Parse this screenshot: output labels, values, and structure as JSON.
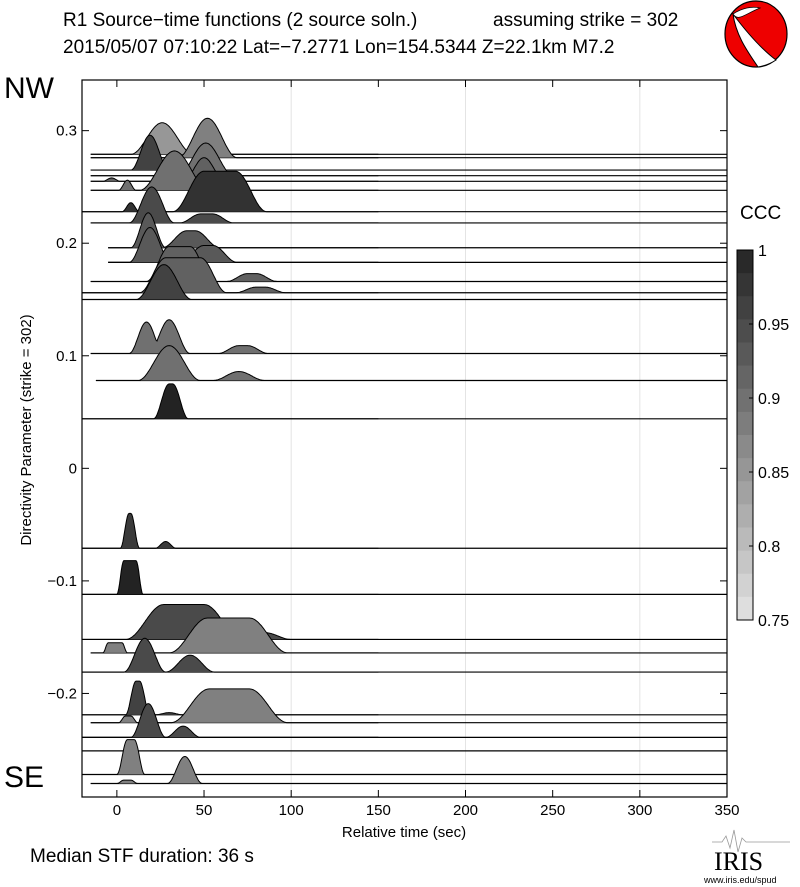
{
  "chart_data": {
    "type": "area",
    "title_line1": "R1 Source−time functions (2 source soln.)",
    "title_strike": "assuming strike = 302",
    "title_line2": "2015/05/07 07:10:22  Lat=−7.2771 Lon=154.5344  Z=22.1km  M7.2",
    "xlabel": "Relative time (sec)",
    "ylabel": "Directivity Parameter (strike = 302)",
    "xlim": [
      -20,
      350
    ],
    "ylim": [
      -0.292,
      0.345
    ],
    "xticks": [
      0,
      50,
      100,
      150,
      200,
      250,
      300,
      350
    ],
    "xgrid": [
      100,
      200,
      300
    ],
    "yticks": [
      0.3,
      0.2,
      0.1,
      0,
      -0.1,
      -0.2
    ],
    "ytick_labels": [
      "0.3",
      "0.2",
      "0.1",
      "0",
      "−0.1",
      "−0.2"
    ],
    "label_top": "NW",
    "label_bottom": "SE",
    "colorbar": {
      "title": "CCC",
      "range": [
        0.75,
        1
      ],
      "ticks": [
        "1",
        "0.95",
        "0.9",
        "0.85",
        "0.8",
        "0.75"
      ],
      "tick_values": [
        1,
        0.95,
        0.9,
        0.85,
        0.8,
        0.75
      ],
      "steps": 16
    },
    "footer": "Median STF duration: 36 s",
    "logo_text": "IRIS",
    "logo_url_text": "www.iris.edu/spud",
    "mechanism_color": "#ee0000",
    "traces": [
      {
        "d": 0.279,
        "start": -15,
        "ccc": 0.85,
        "pulses": [
          [
            26,
            26,
            18,
            0.028
          ]
        ]
      },
      {
        "d": 0.276,
        "start": -15,
        "ccc": 0.88,
        "pulses": [
          [
            52,
            52,
            17,
            0.035
          ]
        ]
      },
      {
        "d": 0.265,
        "start": -15,
        "ccc": 0.96,
        "pulses": [
          [
            19,
            19,
            11,
            0.031
          ],
          [
            40,
            40,
            10,
            0.005
          ]
        ]
      },
      {
        "d": 0.26,
        "start": -15,
        "ccc": 0.9,
        "pulses": [
          [
            51,
            51,
            16,
            0.029
          ]
        ]
      },
      {
        "d": 0.255,
        "start": -15,
        "ccc": 0.92,
        "pulses": [
          [
            50,
            50,
            12,
            0.021
          ],
          [
            -3,
            -3,
            5,
            0.003
          ]
        ]
      },
      {
        "d": 0.247,
        "start": -15,
        "ccc": 0.9,
        "pulses": [
          [
            33,
            33,
            20,
            0.035
          ],
          [
            6,
            6,
            5,
            0.009
          ]
        ]
      },
      {
        "d": 0.228,
        "start": -20,
        "ccc": 0.98,
        "pulses": [
          [
            50,
            68,
            18,
            0.036
          ],
          [
            8,
            8,
            5,
            0.008
          ]
        ]
      },
      {
        "d": 0.218,
        "start": -15,
        "ccc": 0.95,
        "pulses": [
          [
            20,
            20,
            13,
            0.032
          ],
          [
            48,
            55,
            12,
            0.008
          ]
        ]
      },
      {
        "d": 0.196,
        "start": -5,
        "ccc": 0.93,
        "pulses": [
          [
            18,
            18,
            10,
            0.031
          ],
          [
            40,
            45,
            14,
            0.015
          ]
        ]
      },
      {
        "d": 0.183,
        "start": -5,
        "ccc": 0.93,
        "pulses": [
          [
            19,
            19,
            12,
            0.031
          ],
          [
            50,
            55,
            14,
            0.015
          ]
        ]
      },
      {
        "d": 0.166,
        "start": -15,
        "ccc": 0.92,
        "pulses": [
          [
            30,
            42,
            13,
            0.031
          ],
          [
            75,
            80,
            12,
            0.007
          ]
        ]
      },
      {
        "d": 0.156,
        "start": -20,
        "ccc": 0.92,
        "pulses": [
          [
            28,
            48,
            15,
            0.031
          ],
          [
            80,
            85,
            12,
            0.005
          ]
        ]
      },
      {
        "d": 0.15,
        "start": -20,
        "ccc": 0.96,
        "pulses": [
          [
            27,
            27,
            16,
            0.031
          ]
        ]
      },
      {
        "d": 0.102,
        "start": -15,
        "ccc": 0.9,
        "pulses": [
          [
            17,
            17,
            10,
            0.028
          ],
          [
            30,
            30,
            12,
            0.03
          ],
          [
            70,
            75,
            12,
            0.007
          ]
        ]
      },
      {
        "d": 0.078,
        "start": -12,
        "ccc": 0.9,
        "pulses": [
          [
            30,
            30,
            18,
            0.031
          ],
          [
            70,
            70,
            15,
            0.008
          ]
        ]
      },
      {
        "d": 0.044,
        "start": -20,
        "ccc": 1.0,
        "pulses": [
          [
            30,
            32,
            9,
            0.031
          ]
        ]
      },
      {
        "d": -0.071,
        "start": -20,
        "ccc": 0.97,
        "pulses": [
          [
            7,
            8,
            5,
            0.031
          ],
          [
            28,
            28,
            6,
            0.006
          ]
        ]
      },
      {
        "d": -0.112,
        "start": -20,
        "ccc": 1.0,
        "pulses": [
          [
            4,
            11,
            4,
            0.03
          ]
        ]
      },
      {
        "d": -0.152,
        "start": -20,
        "ccc": 0.95,
        "pulses": [
          [
            27,
            50,
            22,
            0.031
          ],
          [
            85,
            85,
            15,
            0.006
          ]
        ]
      },
      {
        "d": -0.164,
        "start": -15,
        "ccc": 0.88,
        "pulses": [
          [
            52,
            76,
            22,
            0.031
          ],
          [
            -5,
            3,
            3,
            0.009
          ]
        ]
      },
      {
        "d": -0.181,
        "start": -20,
        "ccc": 0.95,
        "pulses": [
          [
            16,
            16,
            12,
            0.03
          ],
          [
            42,
            42,
            14,
            0.015
          ]
        ]
      },
      {
        "d": -0.219,
        "start": -20,
        "ccc": 0.96,
        "pulses": [
          [
            11,
            13,
            6,
            0.03
          ],
          [
            30,
            30,
            8,
            0.002
          ]
        ]
      },
      {
        "d": -0.226,
        "start": -15,
        "ccc": 0.88,
        "pulses": [
          [
            53,
            76,
            22,
            0.03
          ],
          [
            5,
            8,
            4,
            0.006
          ]
        ]
      },
      {
        "d": -0.239,
        "start": -20,
        "ccc": 0.95,
        "pulses": [
          [
            18,
            18,
            10,
            0.03
          ],
          [
            38,
            38,
            10,
            0.01
          ]
        ]
      },
      {
        "d": -0.251,
        "start": -20,
        "ccc": 0.9,
        "pulses": []
      },
      {
        "d": -0.272,
        "start": -20,
        "ccc": 0.88,
        "pulses": [
          [
            6,
            10,
            6,
            0.031
          ]
        ]
      },
      {
        "d": -0.28,
        "start": -15,
        "ccc": 0.88,
        "pulses": [
          [
            39,
            39,
            10,
            0.024
          ],
          [
            4,
            8,
            4,
            0.003
          ]
        ]
      }
    ]
  }
}
